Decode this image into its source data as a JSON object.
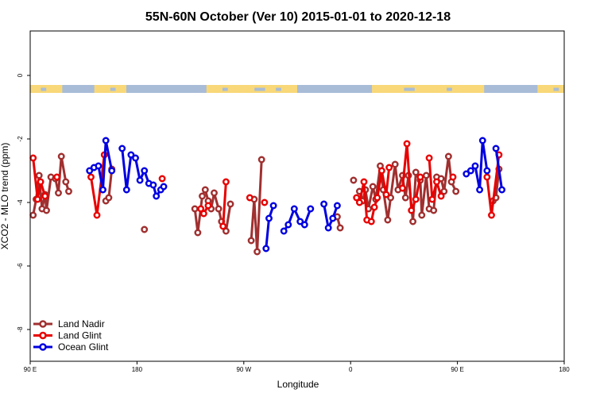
{
  "chart_data": {
    "type": "line",
    "title": "55N-60N October (Ver 10)   2015-01-01 to 2020-12-18",
    "xlabel": "Longitude",
    "ylabel": "XCO2 - MLO trend (ppm)",
    "xlim": [
      90,
      450
    ],
    "ylim": [
      -9.0,
      1.4
    ],
    "x_ticks": [
      {
        "value": 90,
        "label": "90 E"
      },
      {
        "value": 162,
        "label": "180"
      },
      {
        "value": 234,
        "label": "90 W"
      },
      {
        "value": 306,
        "label": "0"
      },
      {
        "value": 378,
        "label": "90 E"
      },
      {
        "value": 450,
        "label": "180"
      }
    ],
    "y_ticks": [
      {
        "value": 0,
        "label": "0"
      },
      {
        "value": -2,
        "label": "-2"
      },
      {
        "value": -4,
        "label": "-4"
      },
      {
        "value": -6,
        "label": "-6"
      },
      {
        "value": -8,
        "label": "-8"
      }
    ],
    "grid": false,
    "legend_position": "bottom-left",
    "land_strip": {
      "y_top": -0.3,
      "y_bottom": -0.55,
      "land_color": "#f8d878",
      "ocean_color": "#a8bcd8"
    },
    "series": [
      {
        "name": "Land Nadir",
        "color": "#a03030",
        "segments": [
          [
            [
              92,
              -4.4
            ],
            [
              94,
              -3.9
            ],
            [
              96,
              -3.15
            ],
            [
              98,
              -4.2
            ],
            [
              100,
              -3.75
            ],
            [
              101,
              -4.25
            ],
            [
              104,
              -3.2
            ],
            [
              107,
              -3.25
            ],
            [
              109,
              -3.7
            ],
            [
              111,
              -2.55
            ],
            [
              114,
              -3.35
            ],
            [
              116,
              -3.65
            ]
          ],
          [
            [
              141,
              -3.95
            ],
            [
              143,
              -3.85
            ],
            [
              145,
              -2.95
            ]
          ],
          [
            [
              167,
              -4.85
            ]
          ],
          [
            [
              201,
              -4.2
            ],
            [
              203,
              -4.95
            ],
            [
              206,
              -3.8
            ],
            [
              208,
              -3.6
            ],
            [
              210,
              -3.95
            ],
            [
              212,
              -4.2
            ],
            [
              214,
              -3.7
            ],
            [
              217,
              -4.2
            ],
            [
              219,
              -4.6
            ],
            [
              222,
              -4.9
            ],
            [
              225,
              -4.05
            ]
          ],
          [
            [
              239,
              -5.2
            ],
            [
              241,
              -3.9
            ],
            [
              243,
              -5.55
            ],
            [
              246,
              -2.65
            ]
          ],
          [
            [
              308,
              -3.3
            ]
          ],
          [
            [
              297,
              -4.45
            ],
            [
              299,
              -4.8
            ]
          ],
          [
            [
              312,
              -3.65
            ],
            [
              314,
              -3.95
            ],
            [
              316,
              -3.6
            ],
            [
              318,
              -4.2
            ],
            [
              321,
              -3.5
            ],
            [
              323,
              -3.9
            ],
            [
              326,
              -2.85
            ],
            [
              328,
              -3.6
            ],
            [
              331,
              -4.55
            ],
            [
              333,
              -3.85
            ],
            [
              336,
              -2.8
            ],
            [
              338,
              -3.6
            ],
            [
              341,
              -3.15
            ],
            [
              343,
              -3.85
            ],
            [
              345,
              -3.15
            ],
            [
              348,
              -4.6
            ],
            [
              350,
              -3.05
            ],
            [
              353,
              -3.3
            ],
            [
              354,
              -4.4
            ],
            [
              357,
              -3.15
            ],
            [
              359,
              -4.2
            ],
            [
              362,
              -4.25
            ],
            [
              364,
              -3.2
            ],
            [
              367,
              -3.25
            ],
            [
              369,
              -3.65
            ],
            [
              372,
              -2.55
            ],
            [
              374,
              -3.35
            ],
            [
              377,
              -3.65
            ]
          ],
          [
            [
              402,
              -3.95
            ],
            [
              404,
              -3.85
            ],
            [
              406,
              -2.95
            ]
          ]
        ]
      },
      {
        "name": "Land Glint",
        "color": "#e80000",
        "segments": [
          [
            [
              92,
              -2.6
            ],
            [
              95,
              -3.9
            ],
            [
              97,
              -3.35
            ],
            [
              100,
              -3.8
            ]
          ],
          [
            [
              108,
              -3.2
            ]
          ],
          [
            [
              131,
              -3.2
            ],
            [
              135,
              -4.4
            ],
            [
              140,
              -2.5
            ]
          ],
          [
            [
              179,
              -3.25
            ]
          ],
          [
            [
              205,
              -4.2
            ],
            [
              207,
              -4.35
            ],
            [
              210,
              -4.1
            ]
          ],
          [
            [
              220,
              -4.75
            ],
            [
              222,
              -3.35
            ]
          ],
          [
            [
              238,
              -3.85
            ]
          ],
          [
            [
              248,
              -4.0
            ]
          ],
          [
            [
              310,
              -3.85
            ],
            [
              312,
              -4.0
            ],
            [
              315,
              -3.35
            ],
            [
              317,
              -4.55
            ],
            [
              320,
              -4.6
            ],
            [
              322,
              -4.15
            ],
            [
              324,
              -3.85
            ],
            [
              327,
              -3.0
            ],
            [
              330,
              -3.75
            ],
            [
              332,
              -2.9
            ]
          ],
          [
            [
              341,
              -3.55
            ],
            [
              344,
              -2.15
            ],
            [
              347,
              -4.25
            ],
            [
              350,
              -3.9
            ],
            [
              353,
              -3.2
            ]
          ],
          [
            [
              359,
              -2.6
            ],
            [
              361,
              -3.9
            ],
            [
              364,
              -3.35
            ],
            [
              367,
              -3.8
            ]
          ],
          [
            [
              375,
              -3.2
            ]
          ],
          [
            [
              398,
              -3.2
            ],
            [
              401,
              -4.4
            ],
            [
              406,
              -2.5
            ]
          ]
        ]
      },
      {
        "name": "Ocean Glint",
        "color": "#0000e0",
        "segments": [
          [
            [
              130,
              -3.0
            ],
            [
              133,
              -2.9
            ],
            [
              136,
              -2.85
            ],
            [
              139,
              -3.6
            ],
            [
              141,
              -2.05
            ],
            [
              145,
              -3.0
            ]
          ],
          [
            [
              152,
              -2.3
            ],
            [
              155,
              -3.6
            ],
            [
              158,
              -2.5
            ],
            [
              161,
              -2.6
            ],
            [
              164,
              -3.3
            ],
            [
              167,
              -3.0
            ],
            [
              170,
              -3.4
            ],
            [
              173,
              -3.45
            ],
            [
              175,
              -3.8
            ],
            [
              178,
              -3.6
            ],
            [
              180,
              -3.5
            ]
          ],
          [
            [
              249,
              -5.45
            ],
            [
              251,
              -4.5
            ],
            [
              254,
              -4.1
            ]
          ],
          [
            [
              261,
              -4.9
            ],
            [
              264,
              -4.7
            ],
            [
              268,
              -4.2
            ],
            [
              272,
              -4.6
            ],
            [
              275,
              -4.7
            ],
            [
              279,
              -4.2
            ]
          ],
          [
            [
              288,
              -4.05
            ],
            [
              291,
              -4.8
            ],
            [
              294,
              -4.5
            ],
            [
              297,
              -4.1
            ]
          ],
          [
            [
              384,
              -3.1
            ],
            [
              387,
              -3.0
            ],
            [
              390,
              -2.85
            ],
            [
              393,
              -3.6
            ],
            [
              395,
              -2.05
            ],
            [
              398,
              -3.0
            ]
          ],
          [
            [
              404,
              -2.3
            ],
            [
              408,
              -3.6
            ]
          ]
        ]
      }
    ]
  }
}
